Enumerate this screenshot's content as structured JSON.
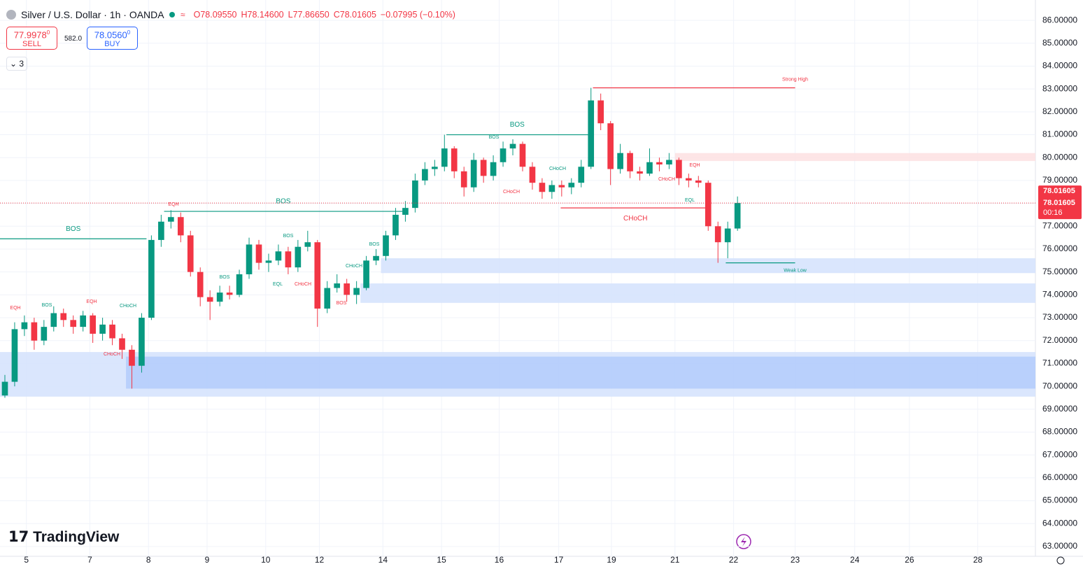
{
  "header": {
    "symbol": "Silver / U.S. Dollar · 1h · OANDA",
    "open": "O78.09550",
    "high": "H78.14600",
    "low": "L77.86650",
    "close": "C78.01605",
    "change": "−0.07995 (−0.10%)"
  },
  "trade": {
    "sell_price": "77.9978",
    "sell_pip": "0",
    "sell_label": "SELL",
    "spread": "582.0",
    "buy_price": "78.0560",
    "buy_pip": "0",
    "buy_label": "BUY"
  },
  "indicators_count": "3",
  "logo": "TradingView",
  "chart_data": {
    "type": "candlestick",
    "up_color": "#089981",
    "down_color": "#f23645",
    "open": [
      69.6,
      70.2,
      72.5,
      72.8,
      72.0,
      72.6,
      73.2,
      72.9,
      72.6,
      73.1,
      72.3,
      72.7,
      72.1,
      71.6,
      70.9,
      73.0,
      76.4,
      77.2,
      77.4,
      76.6,
      75.0,
      73.9,
      73.7,
      74.1,
      74.0,
      74.9,
      76.2,
      75.4,
      75.5,
      75.9,
      75.2,
      76.1,
      76.3,
      73.4,
      74.3,
      74.5,
      74.0,
      74.3,
      75.5,
      75.7,
      76.6,
      77.5,
      77.8,
      79.0,
      79.5,
      79.6,
      80.4,
      79.4,
      78.7,
      79.9,
      79.2,
      79.8,
      80.4,
      80.6,
      79.6,
      78.9,
      78.5,
      78.8,
      78.7,
      78.9,
      79.6,
      82.5,
      81.5,
      79.5,
      80.2,
      79.4,
      79.3,
      79.8,
      79.7,
      79.9,
      79.1,
      79.0,
      78.9,
      77.0,
      76.3,
      76.9
    ],
    "high": [
      70.5,
      72.8,
      73.1,
      73.0,
      72.9,
      73.5,
      73.4,
      73.1,
      73.3,
      73.2,
      73.0,
      72.9,
      72.3,
      71.8,
      73.2,
      76.6,
      77.5,
      77.7,
      77.6,
      76.8,
      75.2,
      74.2,
      74.4,
      74.4,
      75.1,
      76.5,
      76.4,
      75.8,
      76.2,
      76.1,
      76.4,
      76.8,
      76.4,
      74.6,
      74.9,
      74.7,
      74.6,
      75.7,
      76.0,
      76.8,
      77.8,
      78.1,
      79.3,
      79.8,
      79.9,
      81.0,
      80.5,
      79.6,
      80.2,
      80.0,
      80.1,
      80.7,
      80.8,
      80.7,
      79.8,
      79.1,
      79.0,
      79.0,
      79.1,
      79.9,
      83.05,
      82.8,
      81.6,
      80.6,
      80.3,
      79.6,
      80.4,
      80.0,
      80.2,
      80.0,
      79.3,
      79.2,
      79.0,
      77.2,
      77.2,
      78.3
    ],
    "low": [
      69.5,
      70.0,
      72.2,
      71.6,
      71.8,
      72.4,
      72.6,
      72.3,
      72.4,
      71.9,
      72.0,
      71.8,
      71.2,
      69.9,
      70.6,
      72.9,
      76.1,
      76.9,
      76.3,
      74.8,
      73.5,
      72.9,
      73.5,
      73.8,
      73.9,
      74.7,
      75.1,
      75.0,
      75.3,
      74.9,
      75.0,
      75.9,
      72.6,
      73.2,
      74.1,
      73.7,
      73.6,
      74.2,
      75.3,
      75.5,
      76.4,
      77.2,
      77.6,
      78.8,
      79.2,
      79.4,
      79.1,
      78.3,
      78.5,
      78.9,
      79.0,
      79.6,
      80.1,
      79.4,
      78.6,
      78.2,
      78.2,
      78.3,
      78.4,
      78.7,
      79.5,
      81.2,
      78.8,
      79.3,
      79.1,
      79.0,
      79.2,
      79.4,
      79.5,
      78.8,
      78.7,
      78.7,
      76.8,
      75.4,
      75.6,
      76.8
    ],
    "close": [
      70.2,
      72.5,
      72.8,
      72.0,
      72.6,
      73.2,
      72.9,
      72.6,
      73.1,
      72.3,
      72.7,
      72.1,
      71.6,
      70.9,
      73.0,
      76.4,
      77.2,
      77.4,
      76.6,
      75.0,
      73.9,
      73.7,
      74.1,
      74.0,
      74.9,
      76.2,
      75.4,
      75.5,
      75.9,
      75.2,
      76.1,
      76.3,
      73.4,
      74.3,
      74.5,
      74.0,
      74.3,
      75.5,
      75.7,
      76.6,
      77.5,
      77.8,
      79.0,
      79.5,
      79.6,
      80.4,
      79.4,
      78.7,
      79.9,
      79.2,
      79.8,
      80.4,
      80.6,
      79.6,
      78.9,
      78.5,
      78.8,
      78.7,
      78.9,
      79.6,
      82.5,
      81.5,
      79.5,
      80.2,
      79.4,
      79.3,
      79.8,
      79.7,
      79.9,
      79.1,
      79.0,
      78.9,
      77.0,
      76.3,
      76.9,
      78.01605
    ],
    "xlim": [
      0,
      106
    ],
    "xticks": [
      {
        "value": 2.7,
        "label": "5"
      },
      {
        "value": 9.2,
        "label": "7"
      },
      {
        "value": 15.2,
        "label": "8"
      },
      {
        "value": 21.2,
        "label": "9"
      },
      {
        "value": 27.2,
        "label": "10"
      },
      {
        "value": 32.7,
        "label": "12"
      },
      {
        "value": 39.2,
        "label": "14"
      },
      {
        "value": 45.2,
        "label": "15"
      },
      {
        "value": 51.1,
        "label": "16"
      },
      {
        "value": 57.2,
        "label": "17"
      },
      {
        "value": 62.6,
        "label": "19"
      },
      {
        "value": 69.1,
        "label": "21"
      },
      {
        "value": 75.1,
        "label": "22"
      },
      {
        "value": 81.4,
        "label": "23"
      },
      {
        "value": 87.5,
        "label": "24"
      },
      {
        "value": 93.1,
        "label": "26"
      },
      {
        "value": 100.1,
        "label": "28"
      }
    ],
    "ylim": [
      62.57,
      86.89
    ],
    "yticks": [
      {
        "value": 63,
        "label": "63.00000"
      },
      {
        "value": 64,
        "label": "64.00000"
      },
      {
        "value": 65,
        "label": "65.00000"
      },
      {
        "value": 66,
        "label": "66.00000"
      },
      {
        "value": 67,
        "label": "67.00000"
      },
      {
        "value": 68,
        "label": "68.00000"
      },
      {
        "value": 69,
        "label": "69.00000"
      },
      {
        "value": 70,
        "label": "70.00000"
      },
      {
        "value": 71,
        "label": "71.00000"
      },
      {
        "value": 72,
        "label": "72.00000"
      },
      {
        "value": 73,
        "label": "73.00000"
      },
      {
        "value": 74,
        "label": "74.00000"
      },
      {
        "value": 75,
        "label": "75.00000"
      },
      {
        "value": 76,
        "label": "76.00000"
      },
      {
        "value": 77,
        "label": "77.00000"
      },
      {
        "value": 78,
        "label": "78.00000"
      },
      {
        "value": 79,
        "label": "79.00000"
      },
      {
        "value": 80,
        "label": "80.00000"
      },
      {
        "value": 81,
        "label": "81.00000"
      },
      {
        "value": 82,
        "label": "82.00000"
      },
      {
        "value": 83,
        "label": "83.00000"
      },
      {
        "value": 84,
        "label": "84.00000"
      },
      {
        "value": 85,
        "label": "85.00000"
      },
      {
        "value": 86,
        "label": "86.00000"
      }
    ],
    "last_price": 78.01605,
    "last_price_label": "78.01605",
    "bid_label": "78.01605",
    "countdown": "00:16",
    "zones": [
      {
        "low": 69.55,
        "high": 71.5,
        "start": 0,
        "end": 106,
        "color": "#d4e2fd"
      },
      {
        "low": 69.9,
        "high": 71.3,
        "start": 12.9,
        "end": 106,
        "color": "#b3cbfb"
      },
      {
        "low": 73.65,
        "high": 74.5,
        "start": 36.9,
        "end": 106,
        "color": "#d4e2fd"
      },
      {
        "low": 74.95,
        "high": 75.6,
        "start": 39.0,
        "end": 106,
        "color": "#d4e2fd"
      },
      {
        "low": 79.85,
        "high": 80.2,
        "start": 69.1,
        "end": 106,
        "color": "#fde0e2"
      }
    ],
    "structures": [
      {
        "label": "BOS",
        "price": 76.45,
        "start": 0,
        "end": 15.0,
        "color": "#089981"
      },
      {
        "label": "BOS",
        "price": 77.65,
        "start": 16.8,
        "end": 41.2,
        "color": "#089981"
      },
      {
        "label": "BOS",
        "price": 81.0,
        "start": 45.7,
        "end": 60.2,
        "color": "#089981"
      },
      {
        "label": "CHoCH",
        "price": 77.8,
        "start": 57.4,
        "end": 72.7,
        "color": "#f23645"
      },
      {
        "label": "Strong High",
        "price": 83.05,
        "start": 60.7,
        "end": 81.4,
        "color": "#f23645"
      },
      {
        "label": "Weak Low",
        "price": 75.4,
        "start": 74.3,
        "end": 81.4,
        "color": "#089981"
      }
    ],
    "annotations": [
      {
        "label": "EQH",
        "color": "#f23645"
      },
      {
        "label": "BOS",
        "color": "#089981"
      },
      {
        "label": "EQH",
        "color": "#f23645"
      },
      {
        "label": "CHoCH",
        "color": "#089981"
      },
      {
        "label": "CHoCH",
        "color": "#f23645"
      },
      {
        "label": "EQH",
        "color": "#f23645"
      },
      {
        "label": "BOS",
        "color": "#089981"
      },
      {
        "label": "BOS",
        "color": "#089981"
      },
      {
        "label": "EQL",
        "color": "#089981"
      },
      {
        "label": "CHoCH",
        "color": "#f23645"
      },
      {
        "label": "CHoCH",
        "color": "#089981"
      },
      {
        "label": "BOS",
        "color": "#089981"
      },
      {
        "label": "BOS",
        "color": "#f23645"
      },
      {
        "label": "BOS",
        "color": "#089981"
      },
      {
        "label": "CHoCH",
        "color": "#f23645"
      },
      {
        "label": "CHoCH",
        "color": "#089981"
      },
      {
        "label": "CHoCH",
        "color": "#f23645"
      },
      {
        "label": "EQH",
        "color": "#f23645"
      },
      {
        "label": "EQL",
        "color": "#089981"
      }
    ]
  }
}
